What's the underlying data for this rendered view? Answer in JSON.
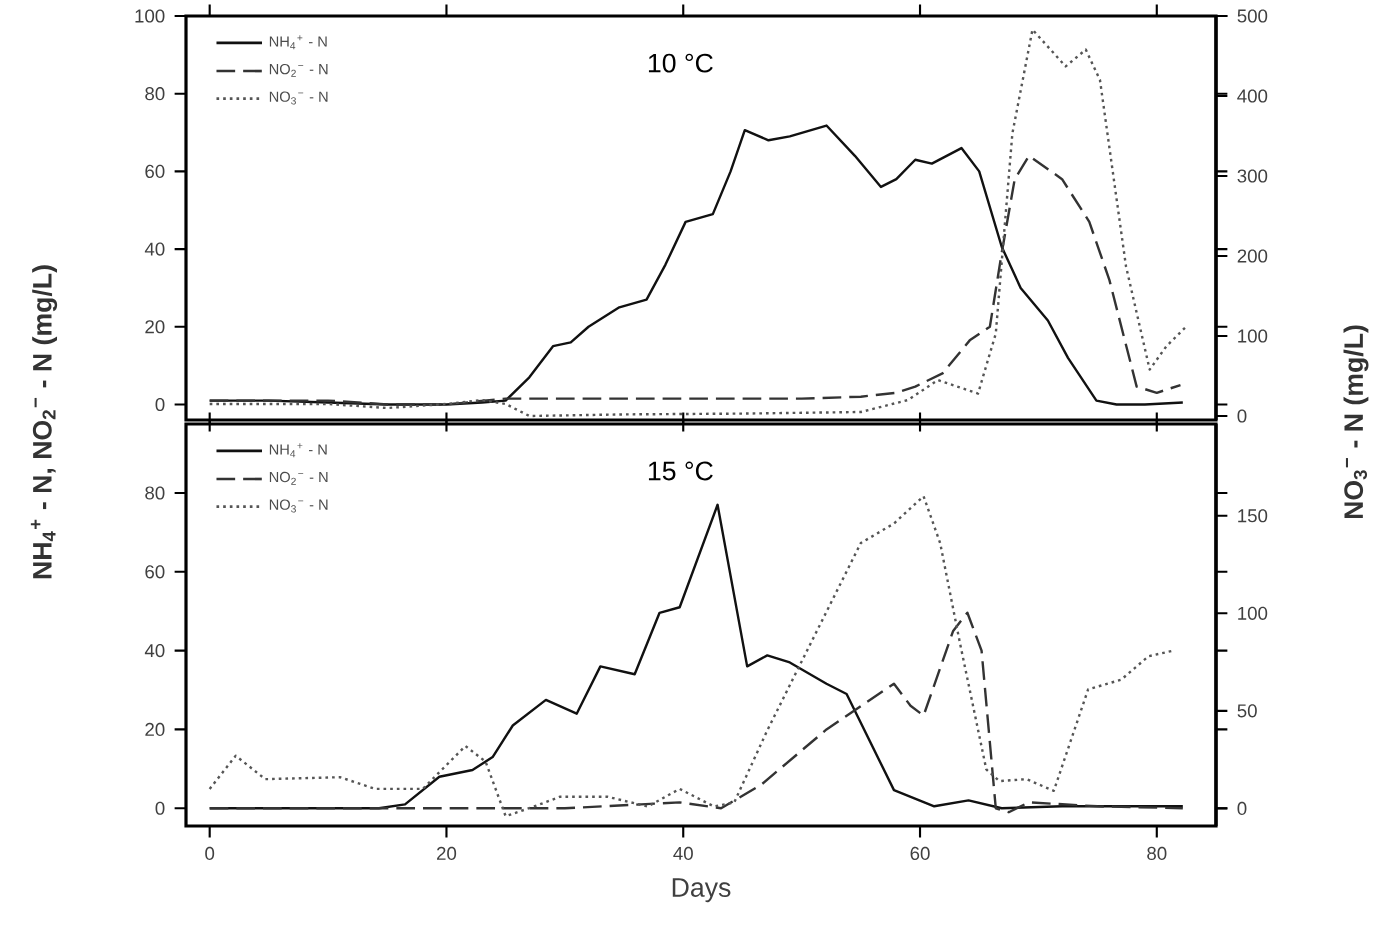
{
  "chart_data": [
    {
      "type": "line",
      "annotations": [
        "10 °C"
      ],
      "ylabel": "NH$_{4}$$^{+}$ - N,  NO$_{2}$$^{−}$ - N (mg/L)",
      "y2label": "NO$_{3}$$^{−}$ - N (mg/L)",
      "xlim": [
        -2,
        85
      ],
      "xticks": [
        {
          "value": 0,
          "label": null
        },
        {
          "value": 20,
          "label": null
        },
        {
          "value": 40,
          "label": null
        },
        {
          "value": 60,
          "label": null
        },
        {
          "value": 80,
          "label": null
        }
      ],
      "ylim": [
        -4,
        100
      ],
      "yticks": [
        0,
        20,
        40,
        60,
        80,
        100
      ],
      "y2lim": [
        -5,
        500
      ],
      "y2ticks": [
        0,
        100,
        200,
        300,
        400,
        500
      ],
      "tick_labels": "y",
      "legend": "top left",
      "marker": "none",
      "grid": false,
      "series": [
        {
          "name": "NH$_{4}$$^{+}$ - N",
          "color": "#111111",
          "line_style": "solid",
          "x": [
            0,
            5,
            10,
            15,
            20,
            23,
            25,
            27,
            29,
            30.5,
            32,
            34.6,
            36.9,
            38.5,
            40.2,
            42.5,
            44,
            45.2,
            47.2,
            49,
            52.1,
            54.5,
            56.7,
            58,
            59.6,
            61,
            63.5,
            65,
            66.9,
            68.5,
            70.8,
            72.5,
            74.9,
            76.6,
            79,
            82.2
          ],
          "values": [
            1,
            1,
            0.5,
            0,
            0,
            0.5,
            1,
            7,
            15,
            16,
            20,
            25,
            27,
            36,
            47,
            49,
            60,
            70.6,
            68,
            69,
            71.8,
            64,
            56,
            58,
            63,
            62,
            66,
            60,
            40.6,
            30,
            21.6,
            12,
            1,
            0,
            0,
            0.5
          ]
        },
        {
          "name": "NO$_{2}$$^{−}$ - N",
          "color": "#333333",
          "line_style": "dashed",
          "x": [
            0,
            10,
            15,
            20,
            25,
            30,
            40,
            50,
            55,
            58,
            59.6,
            61.9,
            64.2,
            65.9,
            66.9,
            68,
            69.2,
            72,
            74.3,
            76,
            78.3,
            80,
            82
          ],
          "values": [
            1,
            1,
            0,
            0,
            1.5,
            1.5,
            1.5,
            1.5,
            2,
            3,
            4.6,
            8,
            16.5,
            20,
            39,
            58,
            64,
            58,
            47,
            32,
            4.6,
            3,
            5
          ]
        },
        {
          "name": "NO$_{3}$$^{−}$ - N",
          "color": "#555555",
          "line_style": "dotted",
          "axis": "y2",
          "x": [
            0,
            5,
            10,
            15,
            20,
            23,
            25,
            27,
            35,
            45,
            55,
            59,
            61.5,
            64.9,
            66.4,
            67.8,
            69.5,
            72.3,
            74,
            75.2,
            77.4,
            79.4,
            80.8,
            82.5
          ],
          "values": [
            15,
            15,
            15,
            10,
            15,
            20,
            15,
            0,
            2,
            3,
            5,
            20,
            45,
            28,
            103,
            353,
            483,
            437,
            458,
            420,
            187,
            58,
            87,
            112
          ]
        }
      ]
    },
    {
      "type": "line",
      "annotations": [
        "15 °C"
      ],
      "xlabel": "Days",
      "xlim": [
        -2,
        85
      ],
      "xticks": [
        0,
        20,
        40,
        60,
        80
      ],
      "ylim": [
        -4.5,
        97.5
      ],
      "yticks": [
        0,
        20,
        40,
        60,
        80
      ],
      "y2lim": [
        -9,
        197
      ],
      "y2ticks": [
        0,
        50,
        100,
        150
      ],
      "legend": "top left",
      "marker": "none",
      "grid": false,
      "series": [
        {
          "name": "NH$_{4}$$^{+}$ - N",
          "color": "#111111",
          "line_style": "solid",
          "x": [
            0,
            14.3,
            16.5,
            19.4,
            22.2,
            23.9,
            25.6,
            28.4,
            31,
            33,
            35.9,
            38,
            39.7,
            42.9,
            45.4,
            47.1,
            49,
            52.1,
            53.8,
            57.8,
            61.2,
            64.1,
            66.9,
            72,
            82.2
          ],
          "values": [
            0,
            0,
            1,
            8,
            9.7,
            13,
            21,
            27.5,
            24,
            36,
            34,
            49.6,
            51,
            77,
            36,
            38.8,
            37,
            31.6,
            29,
            4.6,
            0.5,
            2,
            0,
            0.5,
            0.5
          ]
        },
        {
          "name": "NO$_{2}$$^{−}$ - N",
          "color": "#333333",
          "line_style": "dashed",
          "x": [
            0,
            20,
            30,
            39.7,
            43.2,
            46.6,
            52.1,
            57.8,
            59.2,
            60.3,
            62.8,
            64,
            65.2,
            66.4,
            67.5,
            69.2,
            75,
            82.2
          ],
          "values": [
            0,
            0,
            0,
            1.5,
            0,
            6,
            20,
            31.6,
            26,
            23.5,
            45,
            49.6,
            40,
            0,
            -1,
            1.5,
            0.5,
            0
          ]
        },
        {
          "name": "NO$_{3}$$^{−}$ - N",
          "color": "#555555",
          "line_style": "dotted",
          "axis": "y2",
          "x": [
            0,
            2.2,
            4.7,
            11,
            14,
            18,
            21.6,
            23.3,
            25,
            27.4,
            29.6,
            33.6,
            37,
            39.7,
            42.6,
            44.3,
            47.1,
            49.4,
            55,
            57.8,
            60.3,
            61.7,
            63.4,
            65.6,
            66.7,
            69,
            71.3,
            74.2,
            77,
            79.3,
            81.5
          ],
          "values": [
            10,
            27,
            15,
            16,
            10,
            10,
            32,
            24,
            -4,
            1,
            6,
            6,
            1,
            10,
            1,
            3,
            40,
            68,
            136,
            146,
            160,
            136,
            84,
            20,
            14,
            15,
            9,
            61,
            66,
            78,
            81
          ]
        }
      ]
    }
  ]
}
